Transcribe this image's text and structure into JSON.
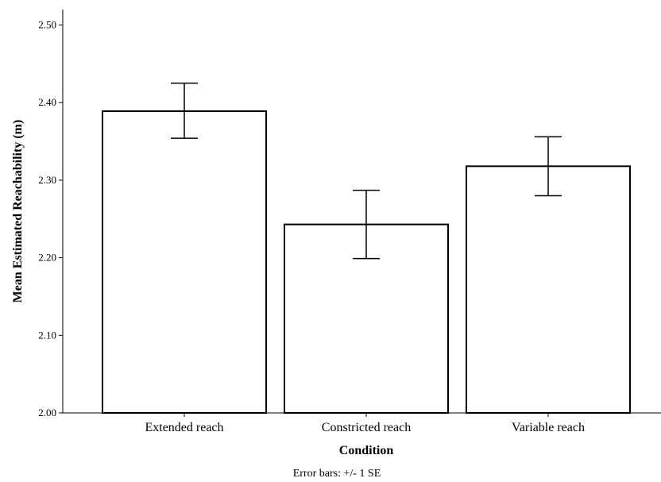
{
  "chart_data": {
    "type": "bar",
    "categories": [
      "Extended reach",
      "Constricted reach",
      "Variable reach"
    ],
    "values": [
      2.389,
      2.243,
      2.318
    ],
    "error_low": [
      2.354,
      2.199,
      2.28
    ],
    "error_high": [
      2.425,
      2.287,
      2.356
    ],
    "xlabel": "Condition",
    "ylabel": "Mean Estimated Reachability (m)",
    "ylim": [
      2.0,
      2.52
    ],
    "yticks": [
      2.0,
      2.1,
      2.2,
      2.3,
      2.4,
      2.5
    ],
    "ytick_labels": [
      "2.00",
      "2.10",
      "2.20",
      "2.30",
      "2.40",
      "2.50"
    ],
    "grid": false,
    "bar_fill": "#ffffff",
    "bar_stroke": "#000000",
    "note": "Error bars: +/- 1 SE"
  }
}
